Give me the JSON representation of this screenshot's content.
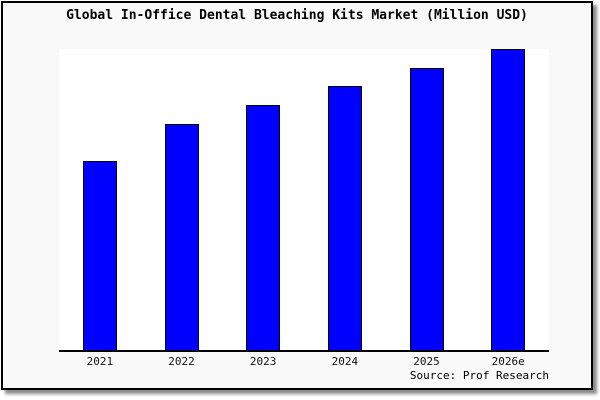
{
  "chart_data": {
    "type": "bar",
    "title": "Global In-Office Dental Bleaching Kits Market (Million USD)",
    "categories": [
      "2021",
      "2022",
      "2023",
      "2024",
      "2025",
      "2026e"
    ],
    "values": [
      62.8,
      75.1,
      81.4,
      87.7,
      93.7,
      100
    ],
    "values_unit": "relative height, % of tallest (2026e) bar; no y-axis labels shown in chart",
    "xlabel": "",
    "ylabel": "",
    "ylim": [
      0,
      100
    ],
    "grid": false,
    "legend": false,
    "bar_color": "#0000FF",
    "bar_border_color": "#000000"
  },
  "source_note": "Source: Prof Research",
  "colors": {
    "frame_background": "#F9F9F9",
    "plot_background": "#FFFFFF",
    "frame_border": "#000000",
    "axis_line": "#000000",
    "text_color": "#000000"
  }
}
